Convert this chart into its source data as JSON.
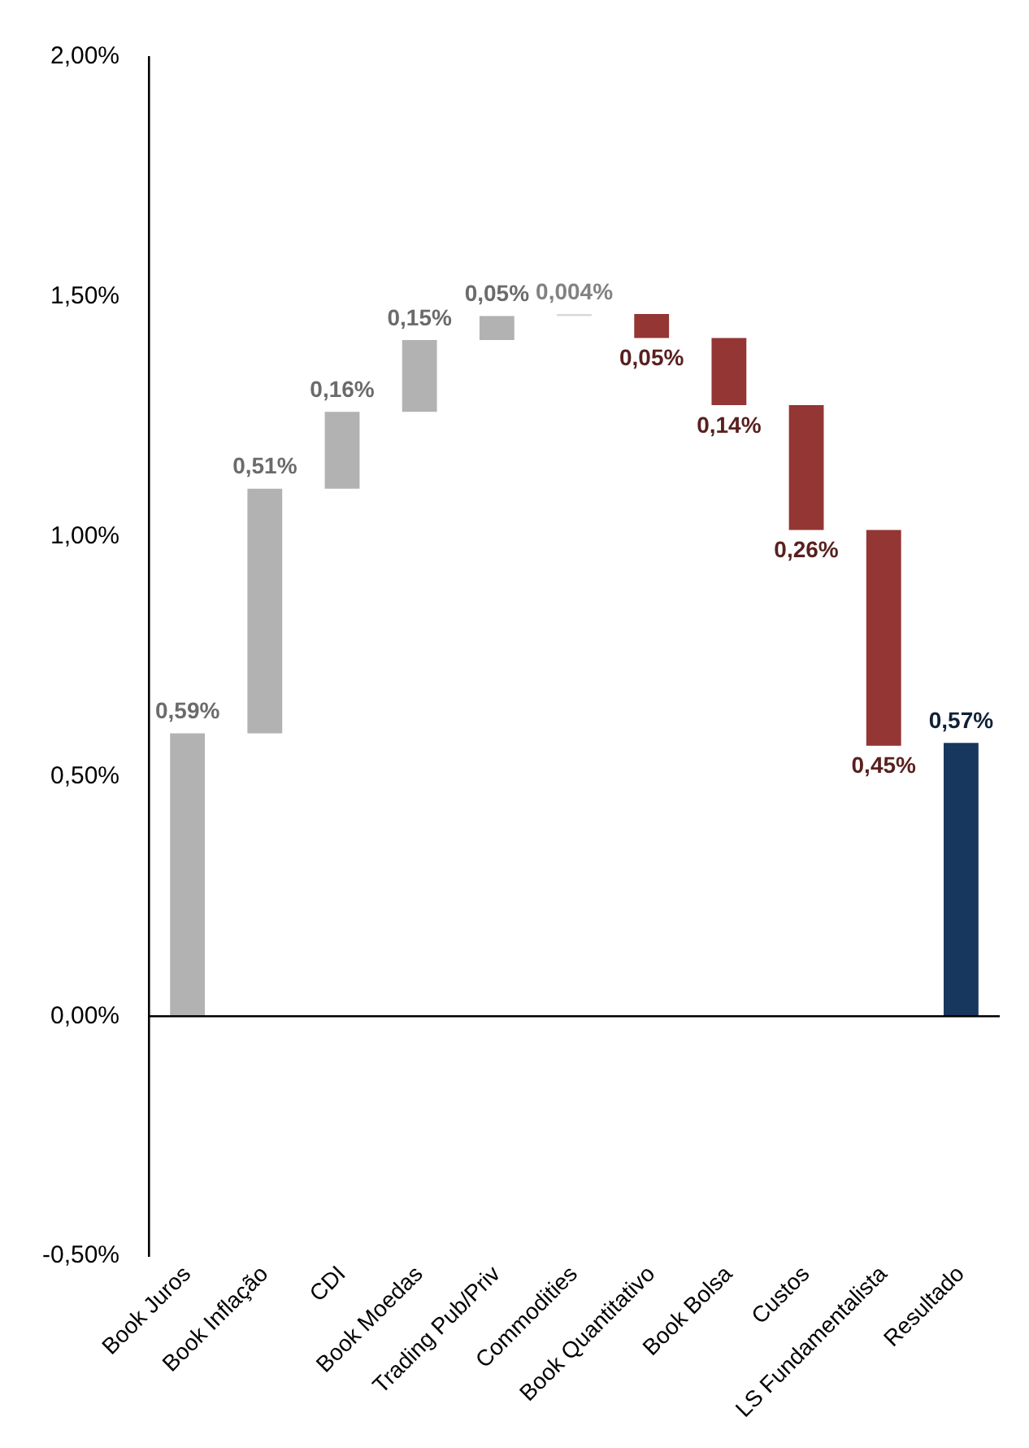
{
  "chart_data": {
    "type": "bar",
    "categories": [
      "Book Juros",
      "Book Inflação",
      "CDI",
      "Book Moedas",
      "Trading Pub/Priv",
      "Commodities",
      "Book Quantitativo",
      "Book Bolsa",
      "Custos",
      "LS Fundamentalista",
      "Resultado"
    ],
    "values": [
      0.59,
      0.51,
      0.16,
      0.15,
      0.05,
      0.004,
      -0.05,
      -0.14,
      -0.26,
      -0.45,
      0.57
    ],
    "base": [
      0,
      0.59,
      1.1,
      1.26,
      1.41,
      1.46,
      1.464,
      1.414,
      1.274,
      1.014,
      0
    ],
    "colors": [
      "#b2b2b2",
      "#b2b2b2",
      "#b2b2b2",
      "#b2b2b2",
      "#b2b2b2",
      "#d9d9d9",
      "#943634",
      "#943634",
      "#943634",
      "#943634",
      "#17375e"
    ],
    "value_labels": [
      "0,59%",
      "0,51%",
      "0,16%",
      "0,15%",
      "0,05%",
      "0,004%",
      "0,05%",
      "0,14%",
      "0,26%",
      "0,45%",
      "0,57%"
    ],
    "ylim": [
      -0.5,
      2
    ],
    "yticks": [
      {
        "value": -0.5,
        "label": "-0,50%"
      },
      {
        "value": 0,
        "label": "0,00%"
      },
      {
        "value": 0.5,
        "label": "0,50%"
      },
      {
        "value": 1,
        "label": "1,00%"
      },
      {
        "value": 1.5,
        "label": "1,50%"
      },
      {
        "value": 2,
        "label": "2,00%"
      }
    ],
    "legend": false
  }
}
